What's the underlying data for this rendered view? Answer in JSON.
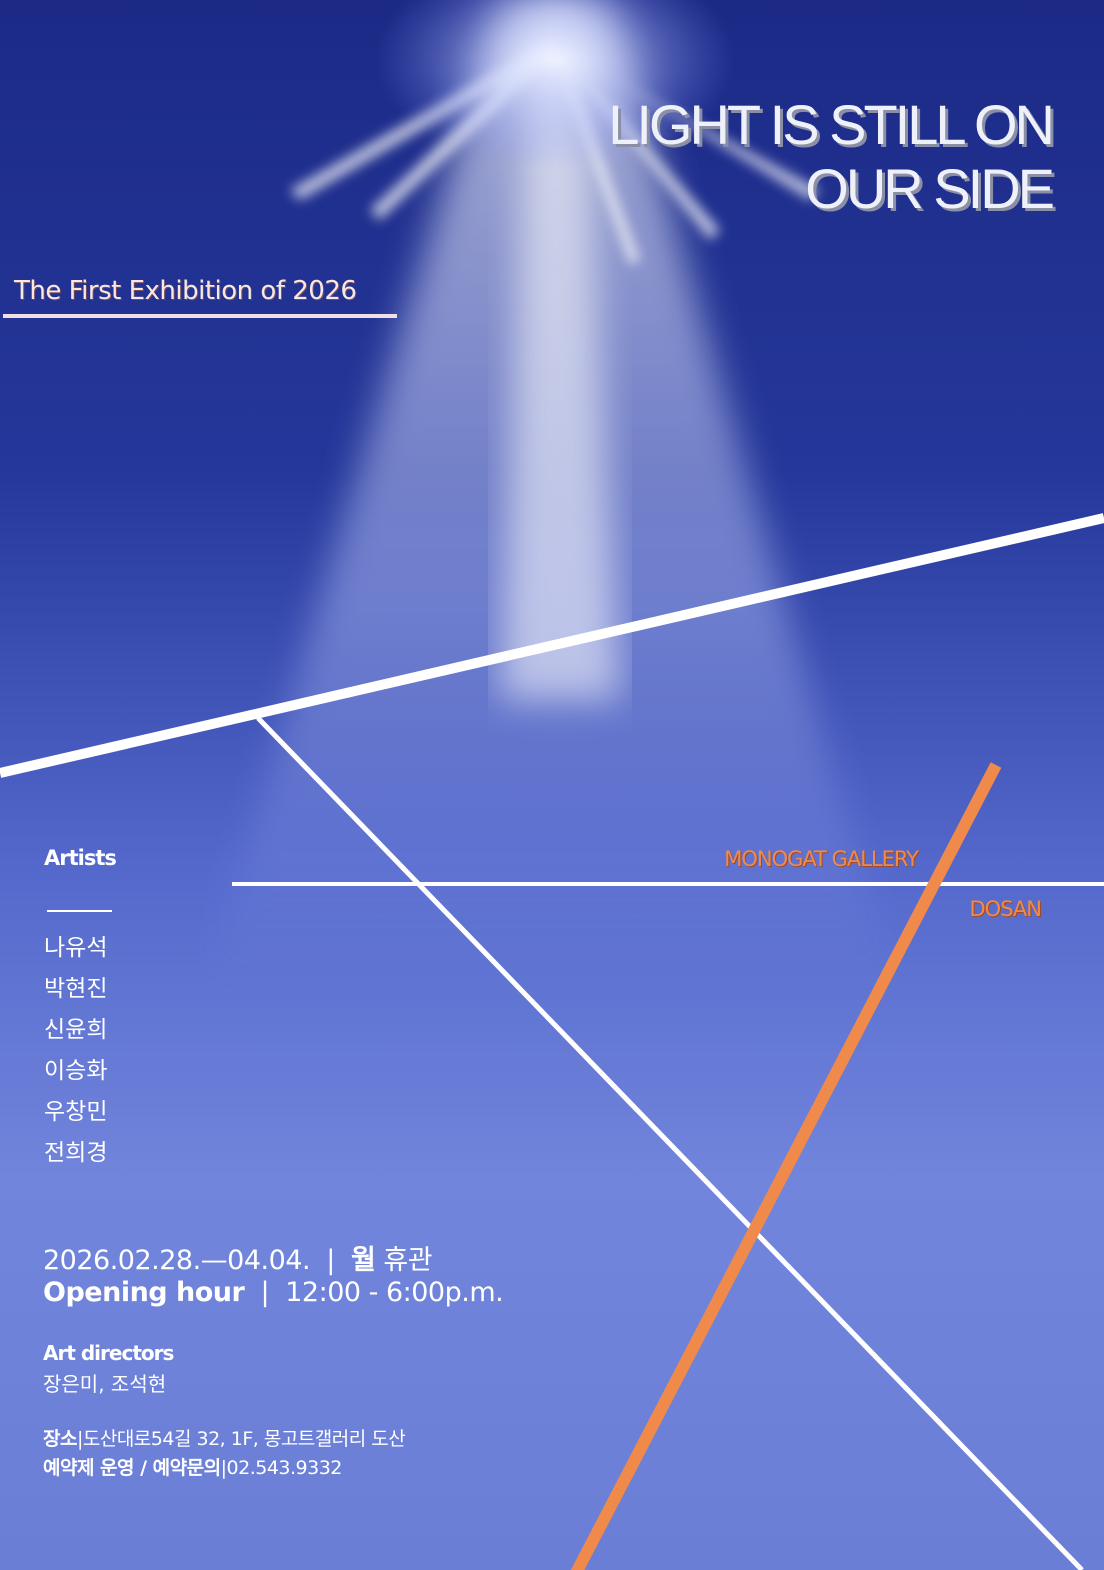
{
  "title": [
    "LIGHT IS STILL ON",
    "OUR SIDE"
  ],
  "subtitle": "The First Exhibition of 2026",
  "artists": {
    "heading": "Artists",
    "names": [
      "나유석",
      "박현진",
      "신윤희",
      "이승화",
      "우창민",
      "전희경"
    ]
  },
  "gallery": {
    "name": "MONOGAT GALLERY",
    "branch": "DOSAN"
  },
  "schedule": [
    [
      {
        "text": "2026.02.28.—04.04.  |  ",
        "bold": false
      },
      {
        "text": "월",
        "bold": true
      },
      {
        "text": " 휴관",
        "bold": false
      }
    ],
    [
      {
        "text": "Opening hour",
        "bold": true
      },
      {
        "text": "  |  12:00 - 6:00p.m.",
        "bold": false
      }
    ]
  ],
  "art_directors": {
    "heading": "Art directors",
    "names": "장은미, 조석현"
  },
  "info": [
    [
      {
        "text": "장소",
        "bold": true
      },
      {
        "text": "|도산대로54길 32, 1F, 몽고트갤러리 도산",
        "bold": false
      }
    ],
    [
      {
        "text": "예약제 운영 / 예약문의",
        "bold": true
      },
      {
        "text": "|02.543.9332",
        "bold": false
      }
    ]
  ]
}
